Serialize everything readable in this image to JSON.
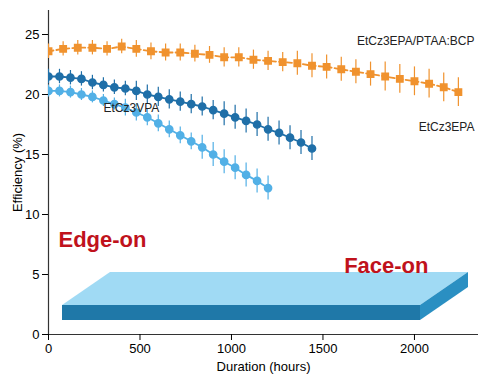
{
  "chart_data": {
    "type": "line",
    "x_label": "Duration (hours)",
    "y_label": "Efficiency (%)",
    "xlim": [
      0,
      2350
    ],
    "ylim": [
      0,
      27
    ],
    "xticks": [
      0,
      500,
      1000,
      1500,
      2000
    ],
    "yticks": [
      0,
      5,
      10,
      15,
      20,
      25
    ],
    "annotations": [
      "Edge-on",
      "Face-on"
    ],
    "series": [
      {
        "name": "EtCz3EPA/PTAA:BCP",
        "color": "#f0922e",
        "marker": "square",
        "line_style": "dashed",
        "x": [
          0,
          80,
          160,
          240,
          320,
          400,
          480,
          560,
          640,
          720,
          800,
          880,
          960,
          1040,
          1120,
          1200,
          1280,
          1360,
          1440,
          1520,
          1600,
          1680,
          1760,
          1840,
          1920,
          2000,
          2080,
          2160,
          2240
        ],
        "values": [
          23.6,
          23.8,
          23.9,
          23.9,
          23.8,
          24.0,
          23.8,
          23.6,
          23.5,
          23.5,
          23.4,
          23.3,
          23.1,
          23.1,
          22.9,
          22.8,
          22.7,
          22.6,
          22.4,
          22.3,
          22.1,
          21.9,
          21.7,
          21.5,
          21.3,
          21.1,
          20.9,
          20.6,
          20.2
        ],
        "errors": [
          0.6,
          0.6,
          0.6,
          0.6,
          0.6,
          0.6,
          0.7,
          0.7,
          0.7,
          0.7,
          0.7,
          0.7,
          0.8,
          0.8,
          0.8,
          0.8,
          0.8,
          1.0,
          1.0,
          1.0,
          1.0,
          1.0,
          1.0,
          1.2,
          1.2,
          1.2,
          1.2,
          1.2,
          1.2
        ]
      },
      {
        "name": "EtCz3EPA",
        "color": "#1f6fa8",
        "marker": "circle",
        "line_style": "solid",
        "x": [
          0,
          60,
          120,
          180,
          240,
          300,
          360,
          420,
          480,
          540,
          600,
          660,
          720,
          780,
          840,
          900,
          960,
          1020,
          1080,
          1140,
          1200,
          1260,
          1320,
          1380,
          1440
        ],
        "values": [
          21.5,
          21.5,
          21.4,
          21.3,
          21.0,
          20.8,
          20.6,
          20.5,
          20.3,
          20.0,
          19.8,
          19.6,
          19.4,
          19.2,
          19.0,
          18.7,
          18.4,
          18.1,
          17.8,
          17.5,
          17.1,
          16.8,
          16.4,
          16.0,
          15.5
        ],
        "errors": [
          0.6,
          0.6,
          0.6,
          0.6,
          0.6,
          0.6,
          0.6,
          0.6,
          0.8,
          0.8,
          0.8,
          0.8,
          0.8,
          0.8,
          0.8,
          0.8,
          1.0,
          1.0,
          1.0,
          1.0,
          1.0,
          1.0,
          1.0,
          1.0,
          1.0
        ]
      },
      {
        "name": "EtCz3VPA",
        "color": "#52b0e6",
        "marker": "circle",
        "line_style": "solid",
        "x": [
          0,
          60,
          120,
          180,
          240,
          300,
          360,
          420,
          480,
          540,
          600,
          660,
          720,
          780,
          840,
          900,
          960,
          1020,
          1080,
          1140,
          1200
        ],
        "values": [
          20.3,
          20.3,
          20.2,
          20.0,
          19.8,
          19.5,
          19.2,
          18.9,
          18.5,
          18.1,
          17.6,
          17.1,
          16.6,
          16.1,
          15.6,
          15.0,
          14.4,
          13.9,
          13.3,
          12.8,
          12.2
        ],
        "errors": [
          0.5,
          0.5,
          0.5,
          0.5,
          0.5,
          0.5,
          0.5,
          0.7,
          0.7,
          0.7,
          0.7,
          0.7,
          0.7,
          0.7,
          1.0,
          1.0,
          1.0,
          1.0,
          1.0,
          1.0,
          1.0
        ]
      }
    ]
  }
}
